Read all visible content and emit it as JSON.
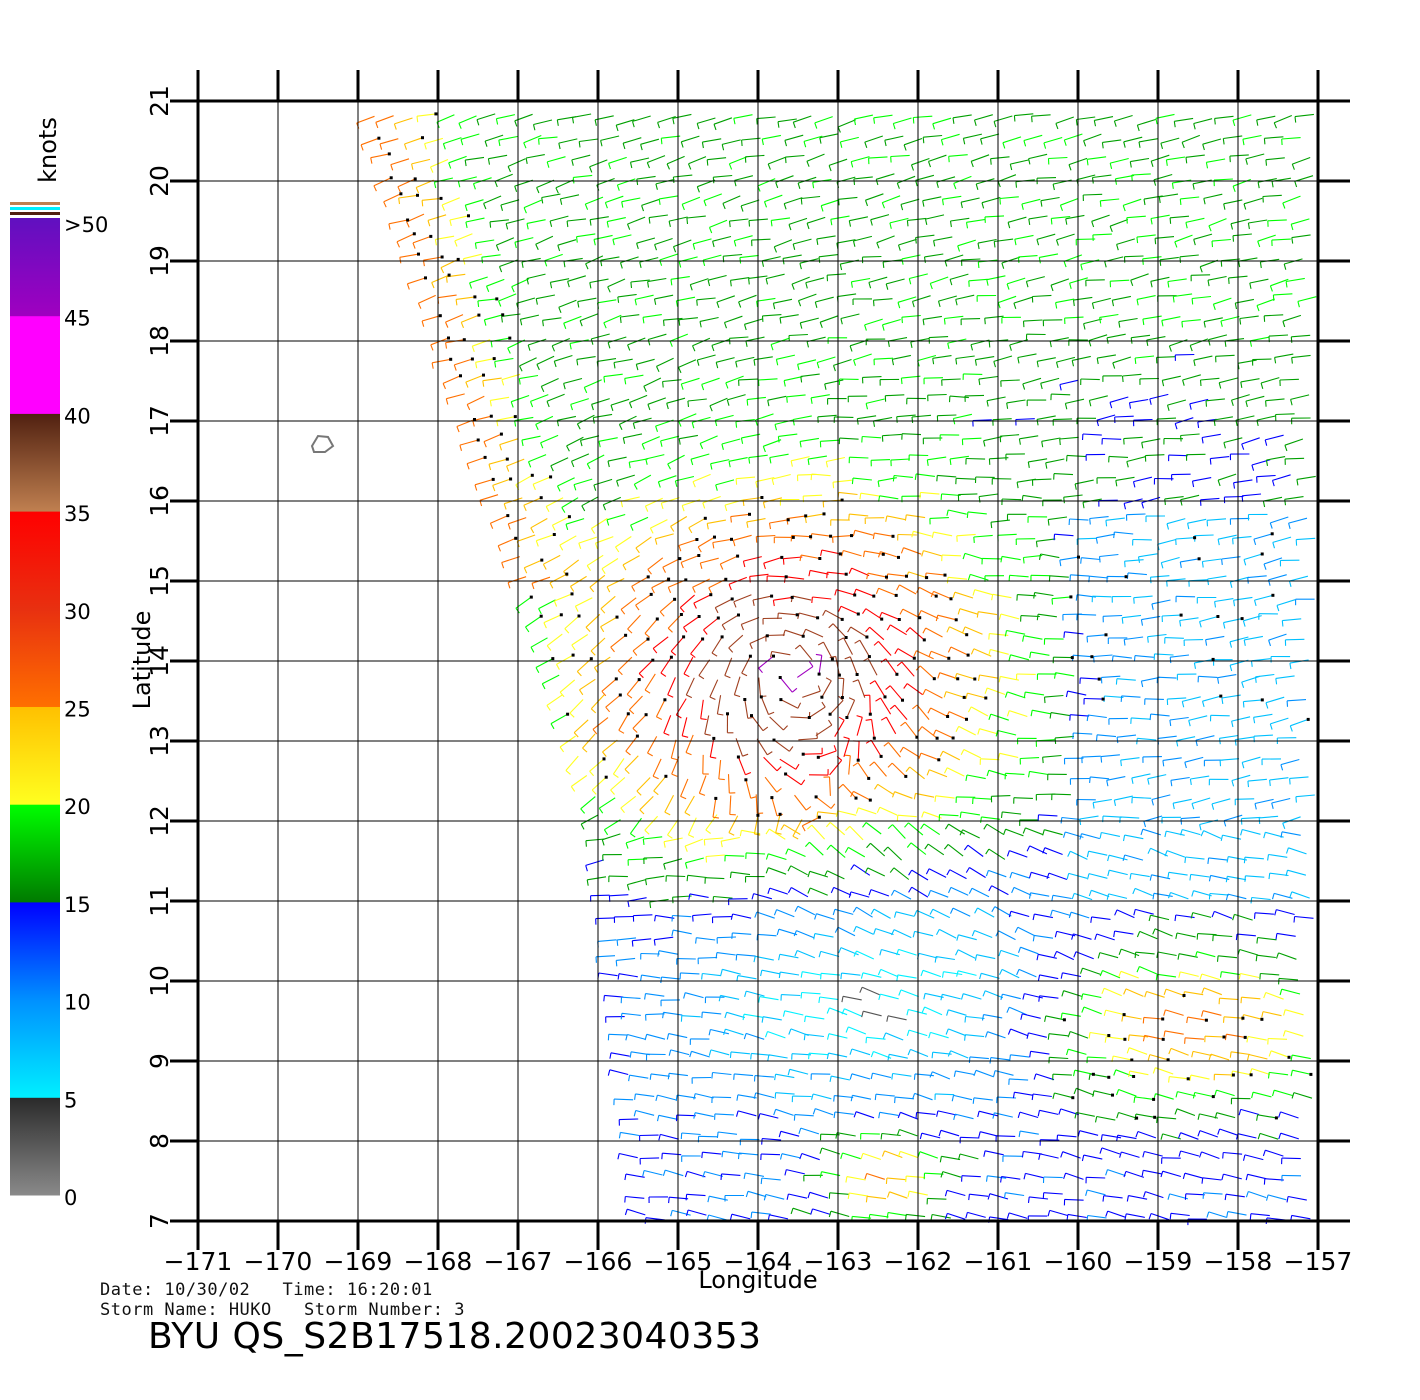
{
  "map": {
    "lon_range": [
      -171,
      -157
    ],
    "lat_range": [
      7,
      21
    ],
    "lon_ticks": [
      "−171",
      "−170",
      "−169",
      "−168",
      "−167",
      "−166",
      "−165",
      "−164",
      "−163",
      "−162",
      "−161",
      "−160",
      "−159",
      "−158",
      "−157"
    ],
    "lat_ticks": [
      "7",
      "8",
      "9",
      "10",
      "11",
      "12",
      "13",
      "14",
      "15",
      "16",
      "17",
      "18",
      "19",
      "20",
      "21"
    ],
    "xlabel": "Longitude",
    "ylabel": "Latitude",
    "grid": true,
    "swath_left_edge": [
      [
        -168.95,
        21
      ],
      [
        -166.95,
        15
      ],
      [
        -166.05,
        12
      ],
      [
        -165.45,
        7
      ]
    ],
    "storm_center": [
      -163.6,
      13.9
    ]
  },
  "colorbar": {
    "unit": "knots",
    "labels": [
      "0",
      "5",
      "10",
      "15",
      "20",
      "25",
      "30",
      "35",
      "40",
      "45",
      ">50"
    ],
    "colors": {
      "gray_dark": "#2a2a2a",
      "gray_light": "#8a8a8a",
      "cyan": "#00f0ff",
      "sky": "#0090ff",
      "blue": "#0000ff",
      "green": "#00ff00",
      "dark_green": "#007a00",
      "yellow": "#ffff20",
      "amber": "#ffc000",
      "orange": "#ff7000",
      "red_orange": "#e83010",
      "red": "#ff0000",
      "tan": "#c08050",
      "brown": "#502010",
      "magenta": "#ff00ff",
      "purple": "#a000c0",
      "violet": "#6010c0"
    }
  },
  "info": {
    "date_line": "Date: 10/30/02   Time: 16:20:01",
    "storm_line": "Storm Name: HUKO   Storm Number: 3",
    "product": "BYU QS_S2B17518.20023040353"
  }
}
